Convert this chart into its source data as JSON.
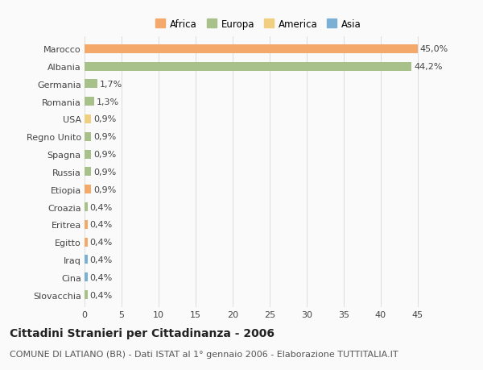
{
  "countries": [
    "Marocco",
    "Albania",
    "Germania",
    "Romania",
    "USA",
    "Regno Unito",
    "Spagna",
    "Russia",
    "Etiopia",
    "Croazia",
    "Eritrea",
    "Egitto",
    "Iraq",
    "Cina",
    "Slovacchia"
  ],
  "values": [
    45.0,
    44.2,
    1.7,
    1.3,
    0.9,
    0.9,
    0.9,
    0.9,
    0.9,
    0.4,
    0.4,
    0.4,
    0.4,
    0.4,
    0.4
  ],
  "labels": [
    "45,0%",
    "44,2%",
    "1,7%",
    "1,3%",
    "0,9%",
    "0,9%",
    "0,9%",
    "0,9%",
    "0,9%",
    "0,4%",
    "0,4%",
    "0,4%",
    "0,4%",
    "0,4%",
    "0,4%"
  ],
  "colors": [
    "#F4A96A",
    "#A8C08A",
    "#A8C08A",
    "#A8C08A",
    "#F0D080",
    "#A8C08A",
    "#A8C08A",
    "#A8C08A",
    "#F4A96A",
    "#A8C08A",
    "#F4A96A",
    "#F4A96A",
    "#7BAFD4",
    "#7BAFD4",
    "#A8C08A"
  ],
  "legend_labels": [
    "Africa",
    "Europa",
    "America",
    "Asia"
  ],
  "legend_colors": [
    "#F4A96A",
    "#A8C08A",
    "#F0D080",
    "#7BAFD4"
  ],
  "title": "Cittadini Stranieri per Cittadinanza - 2006",
  "subtitle": "COMUNE DI LATIANO (BR) - Dati ISTAT al 1° gennaio 2006 - Elaborazione TUTTITALIA.IT",
  "xlim": [
    0,
    47
  ],
  "xticks": [
    0,
    5,
    10,
    15,
    20,
    25,
    30,
    35,
    40,
    45
  ],
  "bg_color": "#FAFAFA",
  "grid_color": "#DDDDDD",
  "bar_height": 0.5,
  "title_fontsize": 10,
  "subtitle_fontsize": 8,
  "tick_fontsize": 8,
  "label_fontsize": 8
}
